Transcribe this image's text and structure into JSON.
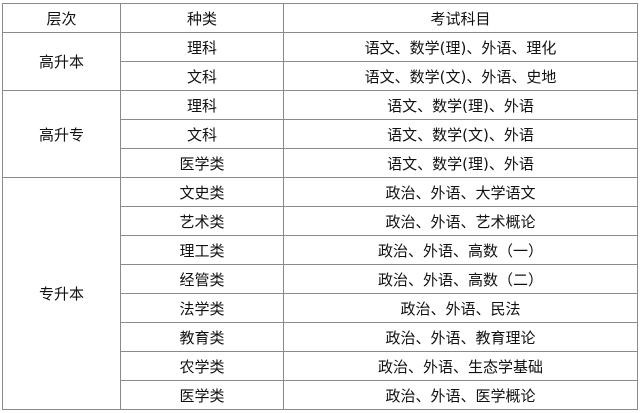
{
  "headers": [
    "层次",
    "种类",
    "考试科目"
  ],
  "groups": [
    {
      "level": "高升本",
      "rows": [
        {
          "type": "理科",
          "subjects": "语文、数学(理)、外语、理化"
        },
        {
          "type": "文科",
          "subjects": "语文、数学(文)、外语、史地"
        }
      ]
    },
    {
      "level": "高升专",
      "rows": [
        {
          "type": "理科",
          "subjects": "语文、数学(理)、外语"
        },
        {
          "type": "文科",
          "subjects": "语文、数学(文)、外语"
        },
        {
          "type": "医学类",
          "subjects": "语文、数学(理)、外语"
        }
      ]
    },
    {
      "level": "专升本",
      "rows": [
        {
          "type": "文史类",
          "subjects": "政治、外语、大学语文"
        },
        {
          "type": "艺术类",
          "subjects": "政治、外语、艺术概论"
        },
        {
          "type": "理工类",
          "subjects": "政治、外语、高数（一）"
        },
        {
          "type": "经管类",
          "subjects": "政治、外语、高数（二）"
        },
        {
          "type": "法学类",
          "subjects": "政治、外语、民法"
        },
        {
          "type": "教育类",
          "subjects": "政治、外语、教育理论"
        },
        {
          "type": "农学类",
          "subjects": "政治、外语、生态学基础"
        },
        {
          "type": "医学类",
          "subjects": "政治、外语、医学概论"
        }
      ]
    }
  ]
}
